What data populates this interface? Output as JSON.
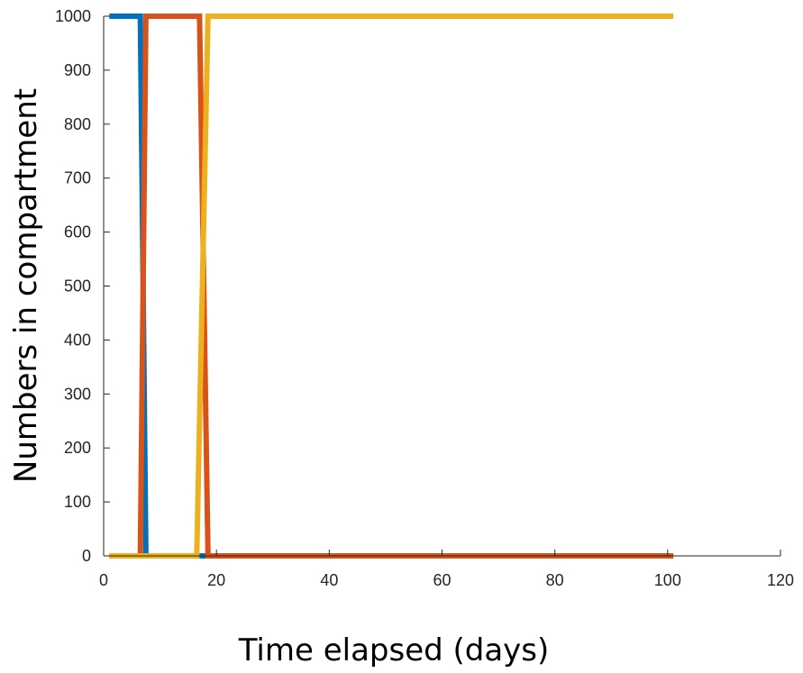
{
  "chart_data": {
    "type": "line",
    "title": "",
    "xlabel": "Time elapsed (days)",
    "ylabel": "Numbers in compartment",
    "xlim": [
      0,
      120
    ],
    "ylim": [
      0,
      1000
    ],
    "xticks": [
      0,
      20,
      40,
      60,
      80,
      100,
      120
    ],
    "yticks": [
      0,
      100,
      200,
      300,
      400,
      500,
      600,
      700,
      800,
      900,
      1000
    ],
    "grid": false,
    "series": [
      {
        "color": "#0072BD",
        "x": [
          1,
          6.5,
          7.5,
          101
        ],
        "y": [
          1000,
          1000,
          0,
          0
        ]
      },
      {
        "color": "#D95319",
        "x": [
          1,
          6.5,
          7.5,
          17,
          18.5,
          101
        ],
        "y": [
          0,
          0,
          1000,
          1000,
          0,
          0
        ]
      },
      {
        "color": "#EDB120",
        "x": [
          1,
          16.5,
          18.5,
          101
        ],
        "y": [
          0,
          0,
          1000,
          1000
        ]
      }
    ]
  }
}
